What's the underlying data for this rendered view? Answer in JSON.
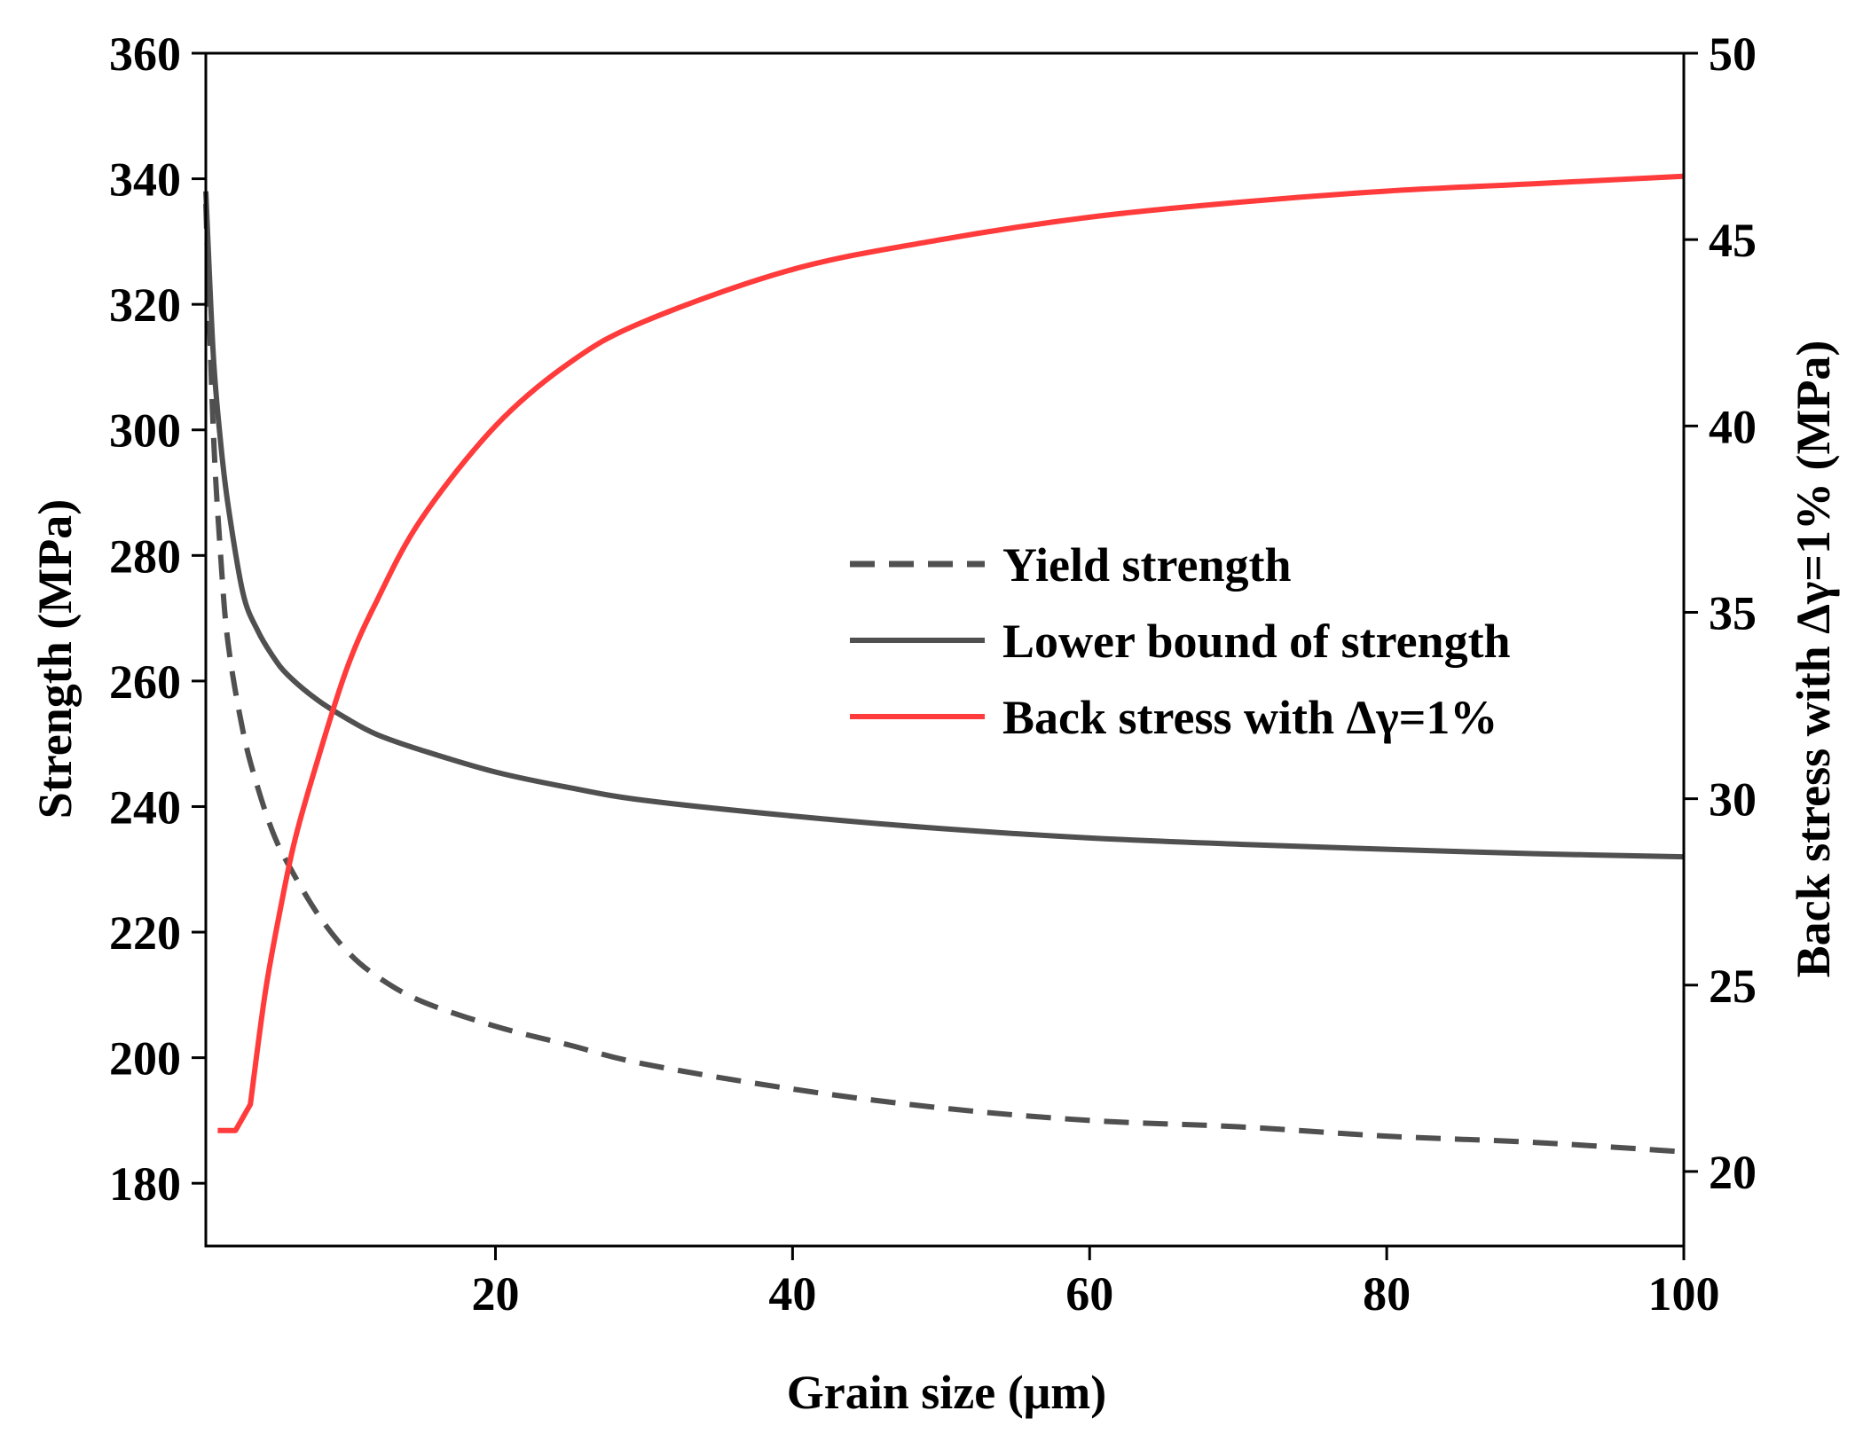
{
  "chart_data": {
    "type": "line",
    "title": "",
    "xlabel": "Grain size (μm)",
    "ylabel": "Strength (MPa)",
    "y2label": "Back stress with Δγ=1% (MPa)",
    "xlim": [
      0.5,
      100
    ],
    "ylim": [
      170,
      360
    ],
    "y2lim": [
      18,
      50
    ],
    "xticks": [
      "20",
      "40",
      "60",
      "80",
      "100"
    ],
    "yticks": [
      "180",
      "200",
      "220",
      "240",
      "260",
      "280",
      "300",
      "320",
      "340",
      "360"
    ],
    "y2ticks": [
      "20",
      "25",
      "30",
      "35",
      "40",
      "45",
      "50"
    ],
    "legend_position": "center-right",
    "series": [
      {
        "name": "Yield strength",
        "axis": "left",
        "style": "dashed",
        "color": "#505050",
        "x": [
          0.5,
          1,
          1.5,
          2,
          3,
          4,
          5,
          6,
          8,
          10,
          12,
          15,
          20,
          25,
          30,
          40,
          50,
          60,
          70,
          80,
          90,
          100
        ],
        "y": [
          336,
          300,
          280,
          266,
          252,
          243,
          236,
          231,
          223,
          217,
          213,
          209,
          205,
          202,
          199,
          195,
          192,
          190,
          189,
          187.5,
          186.5,
          185
        ]
      },
      {
        "name": "Lower bound of strength",
        "axis": "left",
        "style": "solid",
        "color": "#505050",
        "x": [
          0.5,
          1,
          1.5,
          2,
          3,
          4,
          5,
          6,
          8,
          10,
          12,
          15,
          20,
          25,
          30,
          40,
          50,
          60,
          70,
          80,
          90,
          100
        ],
        "y": [
          338,
          312,
          298,
          288,
          274,
          268,
          264,
          261,
          257,
          254,
          251.5,
          249,
          245.5,
          243,
          241,
          238.5,
          236.5,
          235,
          234,
          233.2,
          232.5,
          232
        ]
      },
      {
        "name": "Back stress with Δγ=1%",
        "axis": "right",
        "style": "solid",
        "color": "#ff3b3b",
        "x": [
          1.3,
          2.5,
          3.5,
          4.5,
          5.5,
          6.5,
          8,
          10,
          12,
          15,
          20,
          25,
          30,
          40,
          50,
          60,
          70,
          80,
          90,
          100
        ],
        "y": [
          21.1,
          21.1,
          21.8,
          24.8,
          27.0,
          28.9,
          31.0,
          33.5,
          35.3,
          37.5,
          40.0,
          41.7,
          42.8,
          44.2,
          45.0,
          45.6,
          46.0,
          46.3,
          46.5,
          46.7
        ]
      }
    ]
  }
}
